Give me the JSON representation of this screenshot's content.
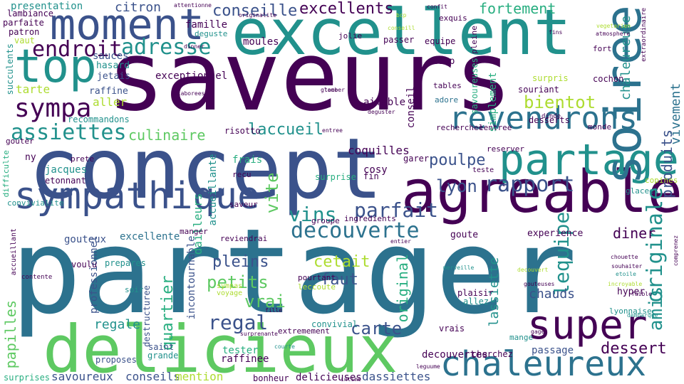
{
  "colors": {
    "background": "#ffffff",
    "purple": "#440154",
    "indigo": "#3b528b",
    "blue": "#2c728e",
    "teal": "#21918c",
    "green": "#28ae80",
    "lightgreen": "#5ec962",
    "lime": "#addc30",
    "yellow": "#fde725"
  },
  "words": [
    "saveurs",
    "concept",
    "partager",
    "excellent",
    "delicieux",
    "agreable",
    "partage",
    "top",
    "soiree",
    "moment",
    "sympathique",
    "super",
    "chaleureux",
    "revendrons",
    "decouverte",
    "parfait",
    "rapport",
    "endroit",
    "adresse",
    "sympa",
    "assiettes",
    "originale",
    "conseille",
    "excellents",
    "fortement",
    "lequipe",
    "amis",
    "vins",
    "carte",
    "regal",
    "dessert",
    "produits",
    "lyon",
    "poulpe",
    "bientot",
    "vivement",
    "chaleureuse",
    "laccueil",
    "culinaire",
    "quartier",
    "vite",
    "vrai",
    "petits",
    "pleins",
    "cetait",
    "faut",
    "original",
    "papilles",
    "diner",
    "chauds",
    "regale",
    "lassiette",
    "conseils",
    "mention",
    "savoureux",
    "dassiettes",
    "decouvertes",
    "passage",
    "raffinee",
    "tester",
    "delicieuses",
    "bonheur",
    "proposes",
    "grande",
    "saint",
    "incontournable",
    "destructuree",
    "professionnel",
    "dailleurs",
    "gouteux",
    "excellente",
    "experience",
    "goute",
    "equipe",
    "citron",
    "famille",
    "presentation",
    "moules",
    "passer",
    "coquilles",
    "risotto",
    "accueillante",
    "exceptionnel",
    "aimable",
    "conseil",
    "sauces",
    "hasard",
    "jetais",
    "raffine",
    "tarte",
    "aller",
    "recommandons",
    "succulents",
    "parfaite",
    "patron",
    "lambiance",
    "vaut",
    "jolie",
    "deguste",
    "exquis",
    "pleine",
    "coup",
    "tables",
    "adore",
    "souriant",
    "desserts",
    "cochon",
    "monde",
    "fort",
    "simplement",
    "savoureuses",
    "recherchee",
    "lentree",
    "frais",
    "cosy",
    "fin",
    "garer",
    "surprise",
    "jacques",
    "ny",
    "prete",
    "etonnant",
    "voulu",
    "prepares",
    "soir",
    "convivial",
    "pourtant",
    "manger",
    "reviendrai",
    "ingredients",
    "groupe",
    "hyper",
    "lyonnaise",
    "plaisir",
    "allez",
    "vrais",
    "cherchez",
    "extremement",
    "surprises",
    "copines",
    "glacees",
    "reserver",
    "teste",
    "surpris",
    "gouter",
    "convivialite",
    "difficulte",
    "accueillant",
    "recu",
    "saveur",
    "dinde",
    "bcp",
    "conseill",
    "confit",
    "attentionne",
    "originalite",
    "merveille",
    "chouette",
    "etoile",
    "souhaiter",
    "comprenez",
    "voyage",
    "leccoute",
    "sympas",
    "faible",
    "dembarque",
    "gouteuses",
    "extraordinaire",
    "incroyable",
    "decouvert",
    "contente",
    "mange",
    "leguume",
    "courte",
    "intime",
    "elaborees",
    "entree",
    "deguster",
    "gage",
    "fille",
    "vegetarien",
    "atmosphere",
    "surprenante",
    "dinner",
    "entier",
    "fins",
    "glace",
    "tomber"
  ]
}
